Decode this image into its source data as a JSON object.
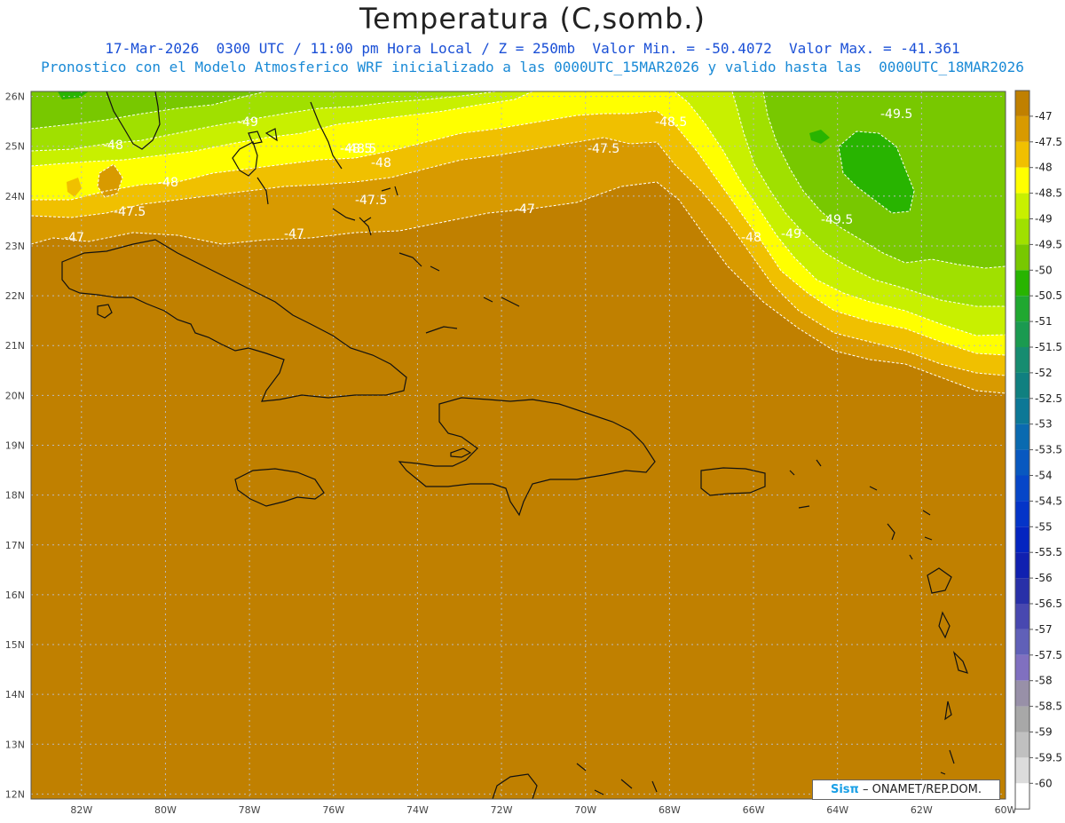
{
  "title": "Temperatura (C,somb.)",
  "subtitle1": "17-Mar-2026  0300 UTC / 11:00 pm Hora Local / Z = 250mb  Valor Min. = -50.4072  Valor Max. = -41.361",
  "subtitle2": "Pronostico con el Modelo Atmosferico WRF inicializado a las 0000UTC_15MAR2026 y valido hasta las  0000UTC_18MAR2026",
  "credit": {
    "brand": "Sisπ",
    "text": "– ONAMET/REP.DOM."
  },
  "lat_labels": [
    "26N",
    "25N",
    "24N",
    "23N",
    "22N",
    "21N",
    "20N",
    "19N",
    "18N",
    "17N",
    "16N",
    "15N",
    "14N",
    "13N",
    "12N"
  ],
  "lon_labels": [
    "82W",
    "80W",
    "78W",
    "76W",
    "74W",
    "72W",
    "70W",
    "68W",
    "66W",
    "64W",
    "62W",
    "60W"
  ],
  "colorbar": {
    "labels": [
      "-47",
      "-47.5",
      "-48",
      "-48.5",
      "-49",
      "-49.5",
      "-50",
      "-50.5",
      "-51",
      "-51.5",
      "-52",
      "-52.5",
      "-53",
      "-53.5",
      "-54",
      "-54.5",
      "-55",
      "-55.5",
      "-56",
      "-56.5",
      "-57",
      "-57.5",
      "-58",
      "-58.5",
      "-59",
      "-59.5",
      "-60"
    ],
    "colors": [
      "#c08000",
      "#d89a00",
      "#f0c000",
      "#ffff00",
      "#c8f000",
      "#a0e000",
      "#78c800",
      "#28b400",
      "#20a830",
      "#1a9a50",
      "#168c70",
      "#108080",
      "#0c7896",
      "#0a6ab0",
      "#0858c0",
      "#0646c8",
      "#0434c8",
      "#0424c0",
      "#1020b0",
      "#2830a8",
      "#4848b0",
      "#6060b8",
      "#8070c0",
      "#9890a8",
      "#a8a8a8",
      "#c0c0c0",
      "#dcdcdc",
      "#ffffff"
    ]
  },
  "contour_labels": [
    "-49",
    "-48.5",
    "-48.5",
    "-48",
    "-48",
    "-47.5",
    "-47.5",
    "-47",
    "-47",
    "-47",
    "-48",
    "-47.5",
    "-48.5",
    "-49.5",
    "-49.5",
    "-48",
    "-49"
  ]
}
